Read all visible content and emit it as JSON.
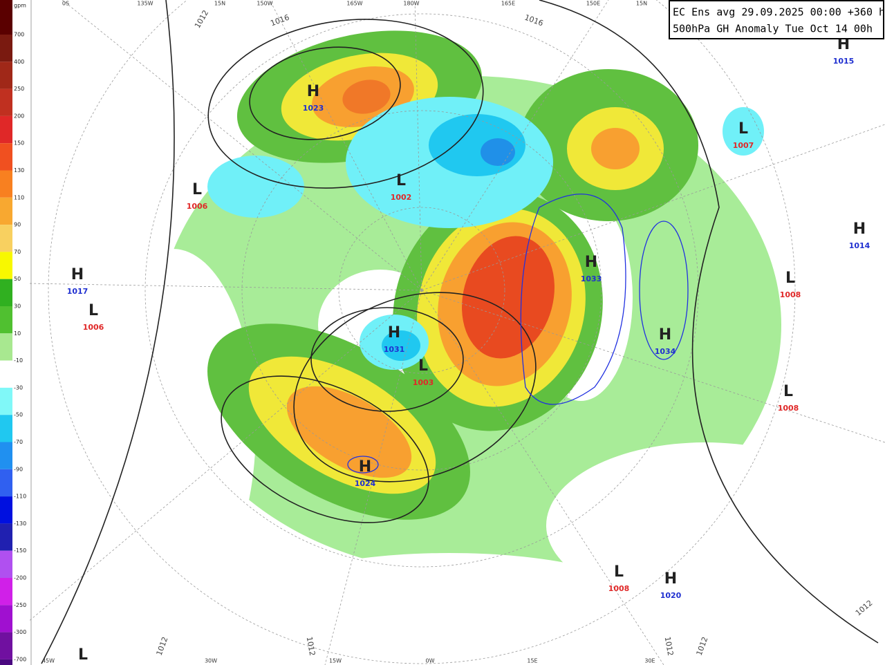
{
  "header": {
    "line1": "EC Ens avg 29.09.2025 00:00 +360 h",
    "line2": "500hPa GH Anomaly Tue Oct 14 00h"
  },
  "colorbar": {
    "unit": "gpm",
    "ticks": [
      700,
      400,
      250,
      200,
      150,
      130,
      110,
      90,
      70,
      50,
      30,
      10,
      -10,
      -30,
      -50,
      -70,
      -90,
      -110,
      -130,
      -150,
      -200,
      -250,
      -300,
      -700
    ]
  },
  "pressure_centers": [
    {
      "symbol": "H",
      "value": 1023
    },
    {
      "symbol": "L",
      "value": 1006
    },
    {
      "symbol": "L",
      "value": 1002
    },
    {
      "symbol": "H",
      "value": 1017
    },
    {
      "symbol": "L",
      "value": 1006
    },
    {
      "symbol": "H",
      "value": 1031
    },
    {
      "symbol": "L",
      "value": 1003
    },
    {
      "symbol": "H",
      "value": 1024
    },
    {
      "symbol": "H",
      "value": 1033
    },
    {
      "symbol": "H",
      "value": 1034
    },
    {
      "symbol": "L",
      "value": 1008
    },
    {
      "symbol": "L",
      "value": 1008
    },
    {
      "symbol": "L",
      "value": 1007
    },
    {
      "symbol": "H",
      "value": 1015
    },
    {
      "symbol": "H",
      "value": 1014
    },
    {
      "symbol": "L",
      "value": 1008
    },
    {
      "symbol": "H",
      "value": 1020
    },
    {
      "symbol": "L"
    }
  ],
  "isobar_labels": [
    1012,
    1016,
    1016,
    1012,
    1012,
    1012,
    1012,
    1012
  ],
  "longitude_labels": {
    "top": [
      "0S",
      "135W",
      "15N",
      "150W",
      "165W",
      "180W",
      "165E",
      "150E",
      "15N"
    ],
    "bottom": [
      "45W",
      "30W",
      "15W",
      "0W",
      "15E",
      "30E"
    ]
  }
}
